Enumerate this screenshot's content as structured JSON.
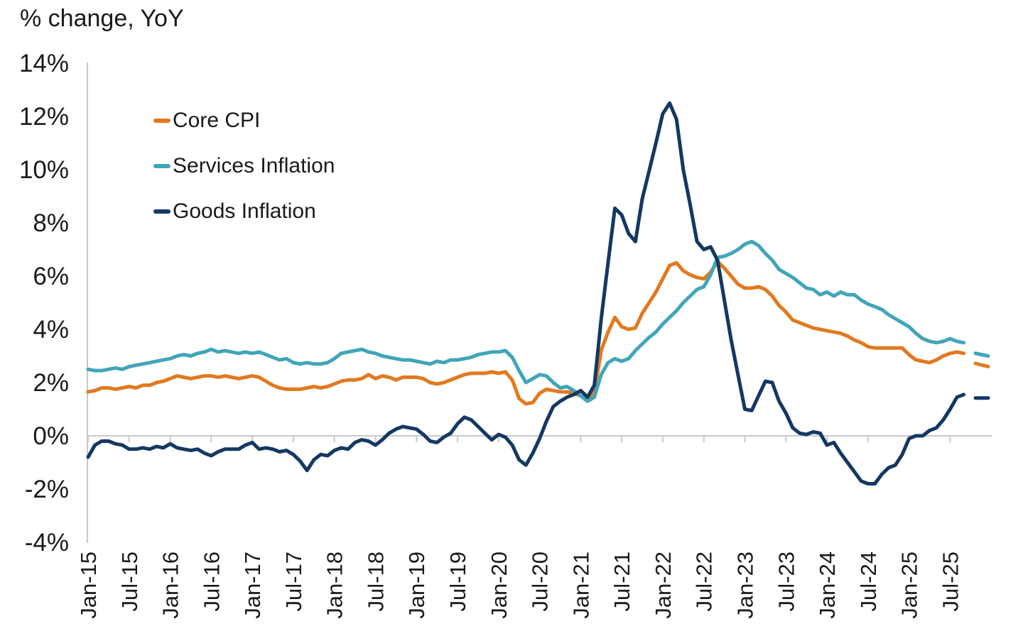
{
  "title": "% change, YoY",
  "legend": {
    "items": [
      {
        "label": "Core CPI",
        "color": "#E2791F"
      },
      {
        "label": "Services Inflation",
        "color": "#41A5B9"
      },
      {
        "label": "Goods Inflation",
        "color": "#133862"
      }
    ]
  },
  "axes": {
    "y_tick_labels": [
      "14%",
      "12%",
      "10%",
      "8%",
      "6%",
      "4%",
      "2%",
      "0%",
      "-2%",
      "-4%"
    ],
    "y_tick_values": [
      14,
      12,
      10,
      8,
      6,
      4,
      2,
      0,
      -2,
      -4
    ],
    "x_tick_labels": [
      "Jan-15",
      "Jul-15",
      "Jan-16",
      "Jul-16",
      "Jan-17",
      "Jul-17",
      "Jan-18",
      "Jul-18",
      "Jan-19",
      "Jul-19",
      "Jan-20",
      "Jul-20",
      "Jan-21",
      "Jul-21",
      "Jan-22",
      "Jul-22",
      "Jan-23",
      "Jul-23",
      "Jan-24",
      "Jul-24",
      "Jan-25",
      "Jul-25"
    ]
  },
  "colors": {
    "background": "#ffffff",
    "text": "#1a1a1a",
    "axis_line": "#c9c9c9"
  },
  "chart_data": {
    "type": "line",
    "title": "% change, YoY",
    "y_unit": "percent",
    "ylim": [
      -4,
      14
    ],
    "y_tick_step": 2,
    "grid": "zero-baseline-only",
    "legend_position": "upper-left-inside",
    "x_frequency": "monthly",
    "x_start": "2015-01",
    "x_end_solid": "2025-09",
    "x_forecast_note": "short dashed segments after Sep-25 are forecast",
    "x_tick_labels": [
      "Jan-15",
      "Jul-15",
      "Jan-16",
      "Jul-16",
      "Jan-17",
      "Jul-17",
      "Jan-18",
      "Jul-18",
      "Jan-19",
      "Jul-19",
      "Jan-20",
      "Jul-20",
      "Jan-21",
      "Jul-21",
      "Jan-22",
      "Jul-22",
      "Jan-23",
      "Jul-23",
      "Jan-24",
      "Jul-24",
      "Jan-25",
      "Jul-25"
    ],
    "series": [
      {
        "name": "Core CPI",
        "color": "#E2791F",
        "values": [
          1.65,
          1.7,
          1.8,
          1.8,
          1.75,
          1.8,
          1.85,
          1.8,
          1.9,
          1.9,
          2.0,
          2.05,
          2.15,
          2.25,
          2.2,
          2.15,
          2.2,
          2.25,
          2.25,
          2.2,
          2.25,
          2.2,
          2.15,
          2.2,
          2.25,
          2.2,
          2.05,
          1.9,
          1.8,
          1.75,
          1.75,
          1.75,
          1.8,
          1.85,
          1.8,
          1.85,
          1.95,
          2.05,
          2.1,
          2.1,
          2.15,
          2.3,
          2.15,
          2.25,
          2.2,
          2.1,
          2.2,
          2.2,
          2.2,
          2.15,
          2.0,
          1.95,
          2.0,
          2.1,
          2.2,
          2.3,
          2.35,
          2.35,
          2.35,
          2.4,
          2.35,
          2.4,
          2.1,
          1.4,
          1.2,
          1.25,
          1.6,
          1.75,
          1.7,
          1.65,
          1.65,
          1.6,
          1.5,
          1.35,
          1.65,
          3.2,
          3.9,
          4.45,
          4.1,
          4.0,
          4.05,
          4.6,
          5.0,
          5.4,
          5.9,
          6.4,
          6.5,
          6.2,
          6.05,
          5.95,
          5.9,
          6.15,
          6.55,
          6.3,
          6.0,
          5.7,
          5.55,
          5.55,
          5.6,
          5.5,
          5.25,
          4.9,
          4.65,
          4.35,
          4.25,
          4.15,
          4.05,
          4.0,
          3.95,
          3.9,
          3.85,
          3.75,
          3.6,
          3.5,
          3.35,
          3.3,
          3.3,
          3.3,
          3.3,
          3.3,
          3.05,
          2.85,
          2.8,
          2.75,
          2.85,
          3.0,
          3.1,
          3.15,
          3.1
        ],
        "forecast_dash": [
          2.72,
          2.6
        ]
      },
      {
        "name": "Services Inflation",
        "color": "#41A5B9",
        "values": [
          2.5,
          2.45,
          2.45,
          2.5,
          2.55,
          2.5,
          2.6,
          2.65,
          2.7,
          2.75,
          2.8,
          2.85,
          2.9,
          3.0,
          3.05,
          3.0,
          3.1,
          3.15,
          3.25,
          3.15,
          3.2,
          3.15,
          3.1,
          3.15,
          3.1,
          3.15,
          3.05,
          2.95,
          2.85,
          2.9,
          2.75,
          2.7,
          2.75,
          2.7,
          2.7,
          2.75,
          2.9,
          3.1,
          3.15,
          3.2,
          3.25,
          3.15,
          3.1,
          3.0,
          2.95,
          2.9,
          2.85,
          2.85,
          2.8,
          2.75,
          2.7,
          2.8,
          2.75,
          2.85,
          2.85,
          2.9,
          2.95,
          3.05,
          3.1,
          3.15,
          3.15,
          3.2,
          2.95,
          2.45,
          2.0,
          2.15,
          2.3,
          2.25,
          2.0,
          1.8,
          1.85,
          1.7,
          1.5,
          1.3,
          1.45,
          2.3,
          2.75,
          2.9,
          2.8,
          2.9,
          3.2,
          3.45,
          3.7,
          3.9,
          4.2,
          4.45,
          4.7,
          5.0,
          5.25,
          5.5,
          5.6,
          6.05,
          6.7,
          6.75,
          6.85,
          7.0,
          7.2,
          7.3,
          7.15,
          6.85,
          6.6,
          6.25,
          6.1,
          5.95,
          5.75,
          5.55,
          5.5,
          5.3,
          5.4,
          5.25,
          5.4,
          5.3,
          5.3,
          5.1,
          4.95,
          4.85,
          4.75,
          4.55,
          4.4,
          4.25,
          4.1,
          3.85,
          3.65,
          3.55,
          3.5,
          3.55,
          3.65,
          3.55,
          3.5
        ],
        "forecast_dash": [
          3.1,
          3.0
        ]
      },
      {
        "name": "Goods Inflation",
        "color": "#133862",
        "values": [
          -0.8,
          -0.35,
          -0.2,
          -0.2,
          -0.3,
          -0.35,
          -0.5,
          -0.5,
          -0.45,
          -0.5,
          -0.4,
          -0.45,
          -0.3,
          -0.45,
          -0.5,
          -0.55,
          -0.5,
          -0.65,
          -0.75,
          -0.6,
          -0.5,
          -0.5,
          -0.5,
          -0.35,
          -0.25,
          -0.5,
          -0.45,
          -0.5,
          -0.6,
          -0.55,
          -0.7,
          -0.95,
          -1.3,
          -0.9,
          -0.7,
          -0.75,
          -0.55,
          -0.45,
          -0.5,
          -0.25,
          -0.15,
          -0.2,
          -0.35,
          -0.15,
          0.1,
          0.25,
          0.35,
          0.3,
          0.25,
          0.05,
          -0.2,
          -0.25,
          -0.05,
          0.1,
          0.45,
          0.7,
          0.6,
          0.35,
          0.1,
          -0.15,
          0.05,
          -0.05,
          -0.35,
          -0.9,
          -1.1,
          -0.65,
          -0.1,
          0.55,
          1.1,
          1.3,
          1.45,
          1.55,
          1.7,
          1.45,
          1.9,
          4.4,
          6.5,
          8.55,
          8.3,
          7.6,
          7.3,
          8.9,
          9.95,
          11.0,
          12.1,
          12.5,
          11.9,
          10.0,
          8.7,
          7.3,
          7.0,
          7.1,
          6.6,
          5.1,
          3.6,
          2.3,
          1.0,
          0.95,
          1.5,
          2.05,
          2.0,
          1.3,
          0.85,
          0.3,
          0.1,
          0.05,
          0.15,
          0.1,
          -0.35,
          -0.25,
          -0.65,
          -1.0,
          -1.35,
          -1.7,
          -1.8,
          -1.8,
          -1.45,
          -1.2,
          -1.1,
          -0.7,
          -0.1,
          0.0,
          0.0,
          0.2,
          0.3,
          0.6,
          1.0,
          1.45,
          1.55
        ],
        "forecast_dash": [
          1.42,
          1.42
        ]
      }
    ]
  }
}
